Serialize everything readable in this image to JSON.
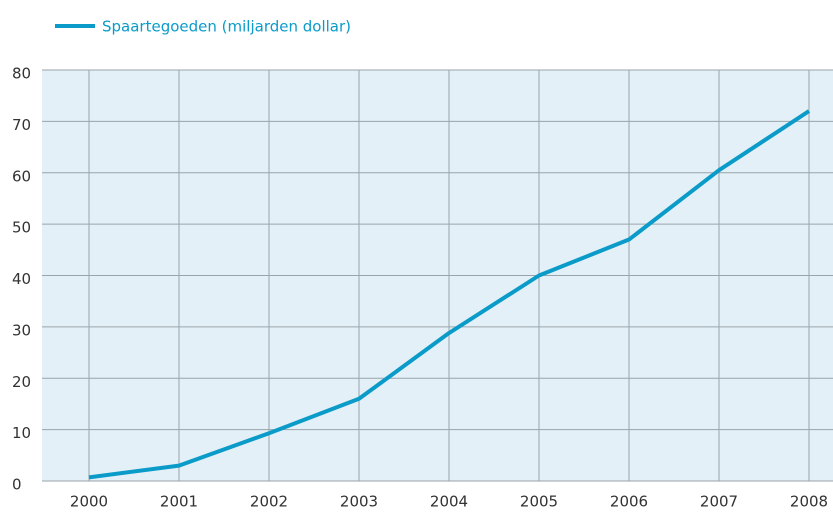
{
  "chart_data": {
    "type": "line",
    "categories": [
      "2000",
      "2001",
      "2002",
      "2003",
      "2004",
      "2005",
      "2006",
      "2007",
      "2008"
    ],
    "series": [
      {
        "name": "Spaartegoeden (miljarden dollar)",
        "color": "#0a9bc9",
        "values": [
          0.7,
          3,
          9.3,
          16,
          28.8,
          40,
          47,
          60.5,
          72
        ]
      }
    ],
    "ylim": [
      0,
      80
    ],
    "yticks": [
      0,
      10,
      20,
      30,
      40,
      50,
      60,
      70,
      80
    ],
    "grid": true,
    "background": "#e3f0f7"
  }
}
